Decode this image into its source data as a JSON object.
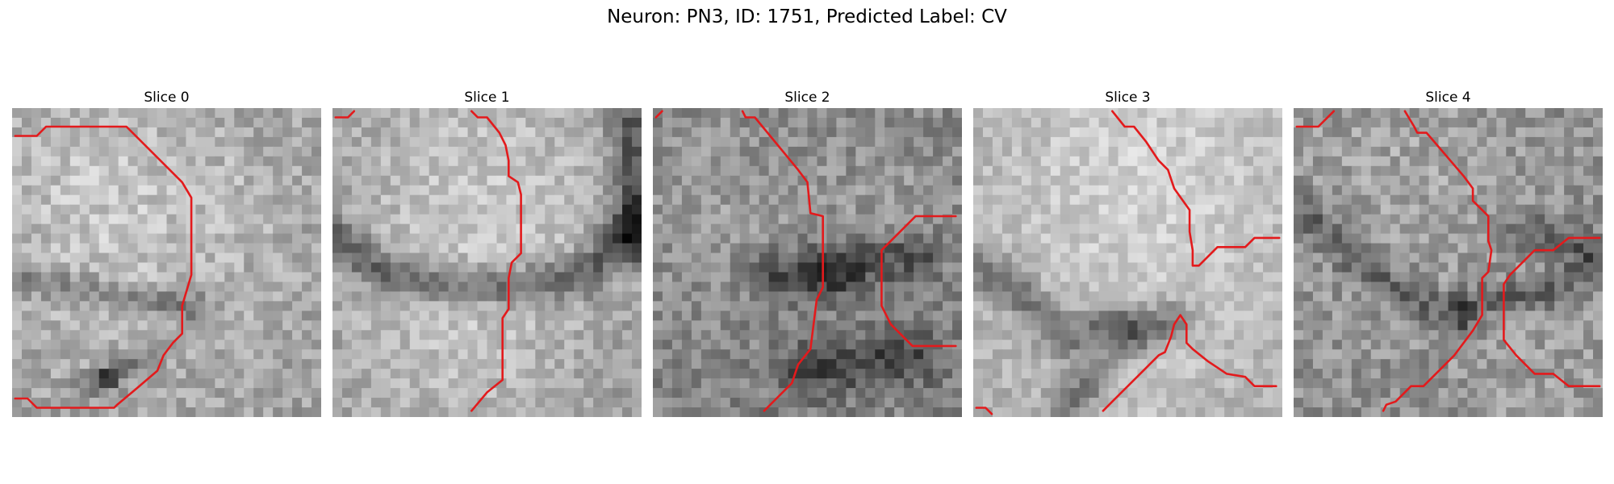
{
  "figure": {
    "title": "Neuron: PN3, ID: 1751, Predicted Label: CV"
  },
  "colors": {
    "contour": "#e31a1c",
    "background": "#ffffff"
  },
  "panels": [
    {
      "title": "Slice 0"
    },
    {
      "title": "Slice 1"
    },
    {
      "title": "Slice 2"
    },
    {
      "title": "Slice 3"
    },
    {
      "title": "Slice 4"
    }
  ]
}
